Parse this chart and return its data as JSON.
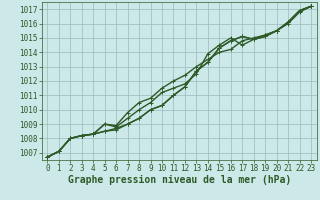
{
  "background_color": "#cce8e8",
  "plot_bg_color": "#cce8e8",
  "grid_color": "#99bbbb",
  "line_color": "#2d5a27",
  "marker_color": "#2d5a27",
  "title": "Graphe pression niveau de la mer (hPa)",
  "xlim": [
    -0.5,
    23.5
  ],
  "ylim": [
    1006.5,
    1017.5
  ],
  "yticks": [
    1007,
    1008,
    1009,
    1010,
    1011,
    1012,
    1013,
    1014,
    1015,
    1016,
    1017
  ],
  "xticks": [
    0,
    1,
    2,
    3,
    4,
    5,
    6,
    7,
    8,
    9,
    10,
    11,
    12,
    13,
    14,
    15,
    16,
    17,
    18,
    19,
    20,
    21,
    22,
    23
  ],
  "series": [
    [
      1006.7,
      1007.1,
      1008.0,
      1008.2,
      1008.3,
      1008.5,
      1008.6,
      1009.0,
      1009.4,
      1010.0,
      1010.3,
      1011.0,
      1011.6,
      1012.7,
      1013.3,
      1014.3,
      1014.8,
      1015.1,
      1014.9,
      1015.1,
      1015.5,
      1016.1,
      1016.9,
      1017.2
    ],
    [
      1006.7,
      1007.1,
      1008.0,
      1008.2,
      1008.3,
      1008.5,
      1008.7,
      1009.0,
      1009.4,
      1010.0,
      1010.3,
      1011.0,
      1011.6,
      1012.7,
      1013.3,
      1014.3,
      1014.8,
      1015.1,
      1014.9,
      1015.1,
      1015.5,
      1016.1,
      1016.9,
      1017.2
    ],
    [
      1006.7,
      1007.1,
      1008.0,
      1008.2,
      1008.3,
      1009.0,
      1008.8,
      1009.4,
      1010.0,
      1010.5,
      1011.2,
      1011.5,
      1011.8,
      1012.5,
      1013.9,
      1014.5,
      1015.0,
      1014.5,
      1014.9,
      1015.2,
      1015.5,
      1016.1,
      1016.9,
      1017.2
    ],
    [
      1006.7,
      1007.1,
      1008.0,
      1008.2,
      1008.3,
      1009.0,
      1008.9,
      1009.8,
      1010.5,
      1010.8,
      1011.5,
      1012.0,
      1012.4,
      1013.0,
      1013.5,
      1014.0,
      1014.2,
      1014.8,
      1015.0,
      1015.2,
      1015.5,
      1016.0,
      1016.8,
      1017.2
    ]
  ],
  "linewidths": [
    1.0,
    1.0,
    1.0,
    1.0
  ],
  "markersize": 2.5,
  "title_fontsize": 7,
  "tick_fontsize": 5.5,
  "title_color": "#2d5a27",
  "tick_color": "#2d5a27",
  "spine_color": "#2d5a27"
}
